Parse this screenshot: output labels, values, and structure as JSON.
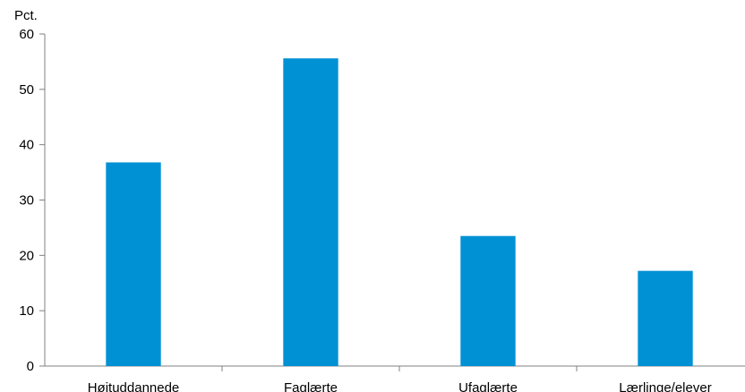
{
  "chart_data": {
    "type": "bar",
    "title": "",
    "ylabel": "Pct.",
    "xlabel": "",
    "ylim": [
      0,
      60
    ],
    "yticks": [
      0,
      10,
      20,
      30,
      40,
      50,
      60
    ],
    "categories": [
      "Højtuddannede",
      "Faglærte",
      "Ufaglærte",
      "Lærlinge/elever"
    ],
    "values": [
      36.8,
      55.6,
      23.5,
      17.2
    ],
    "grid": false,
    "legend": "none",
    "colors": {
      "bar": "#0091d5",
      "axis": "#808080"
    }
  }
}
